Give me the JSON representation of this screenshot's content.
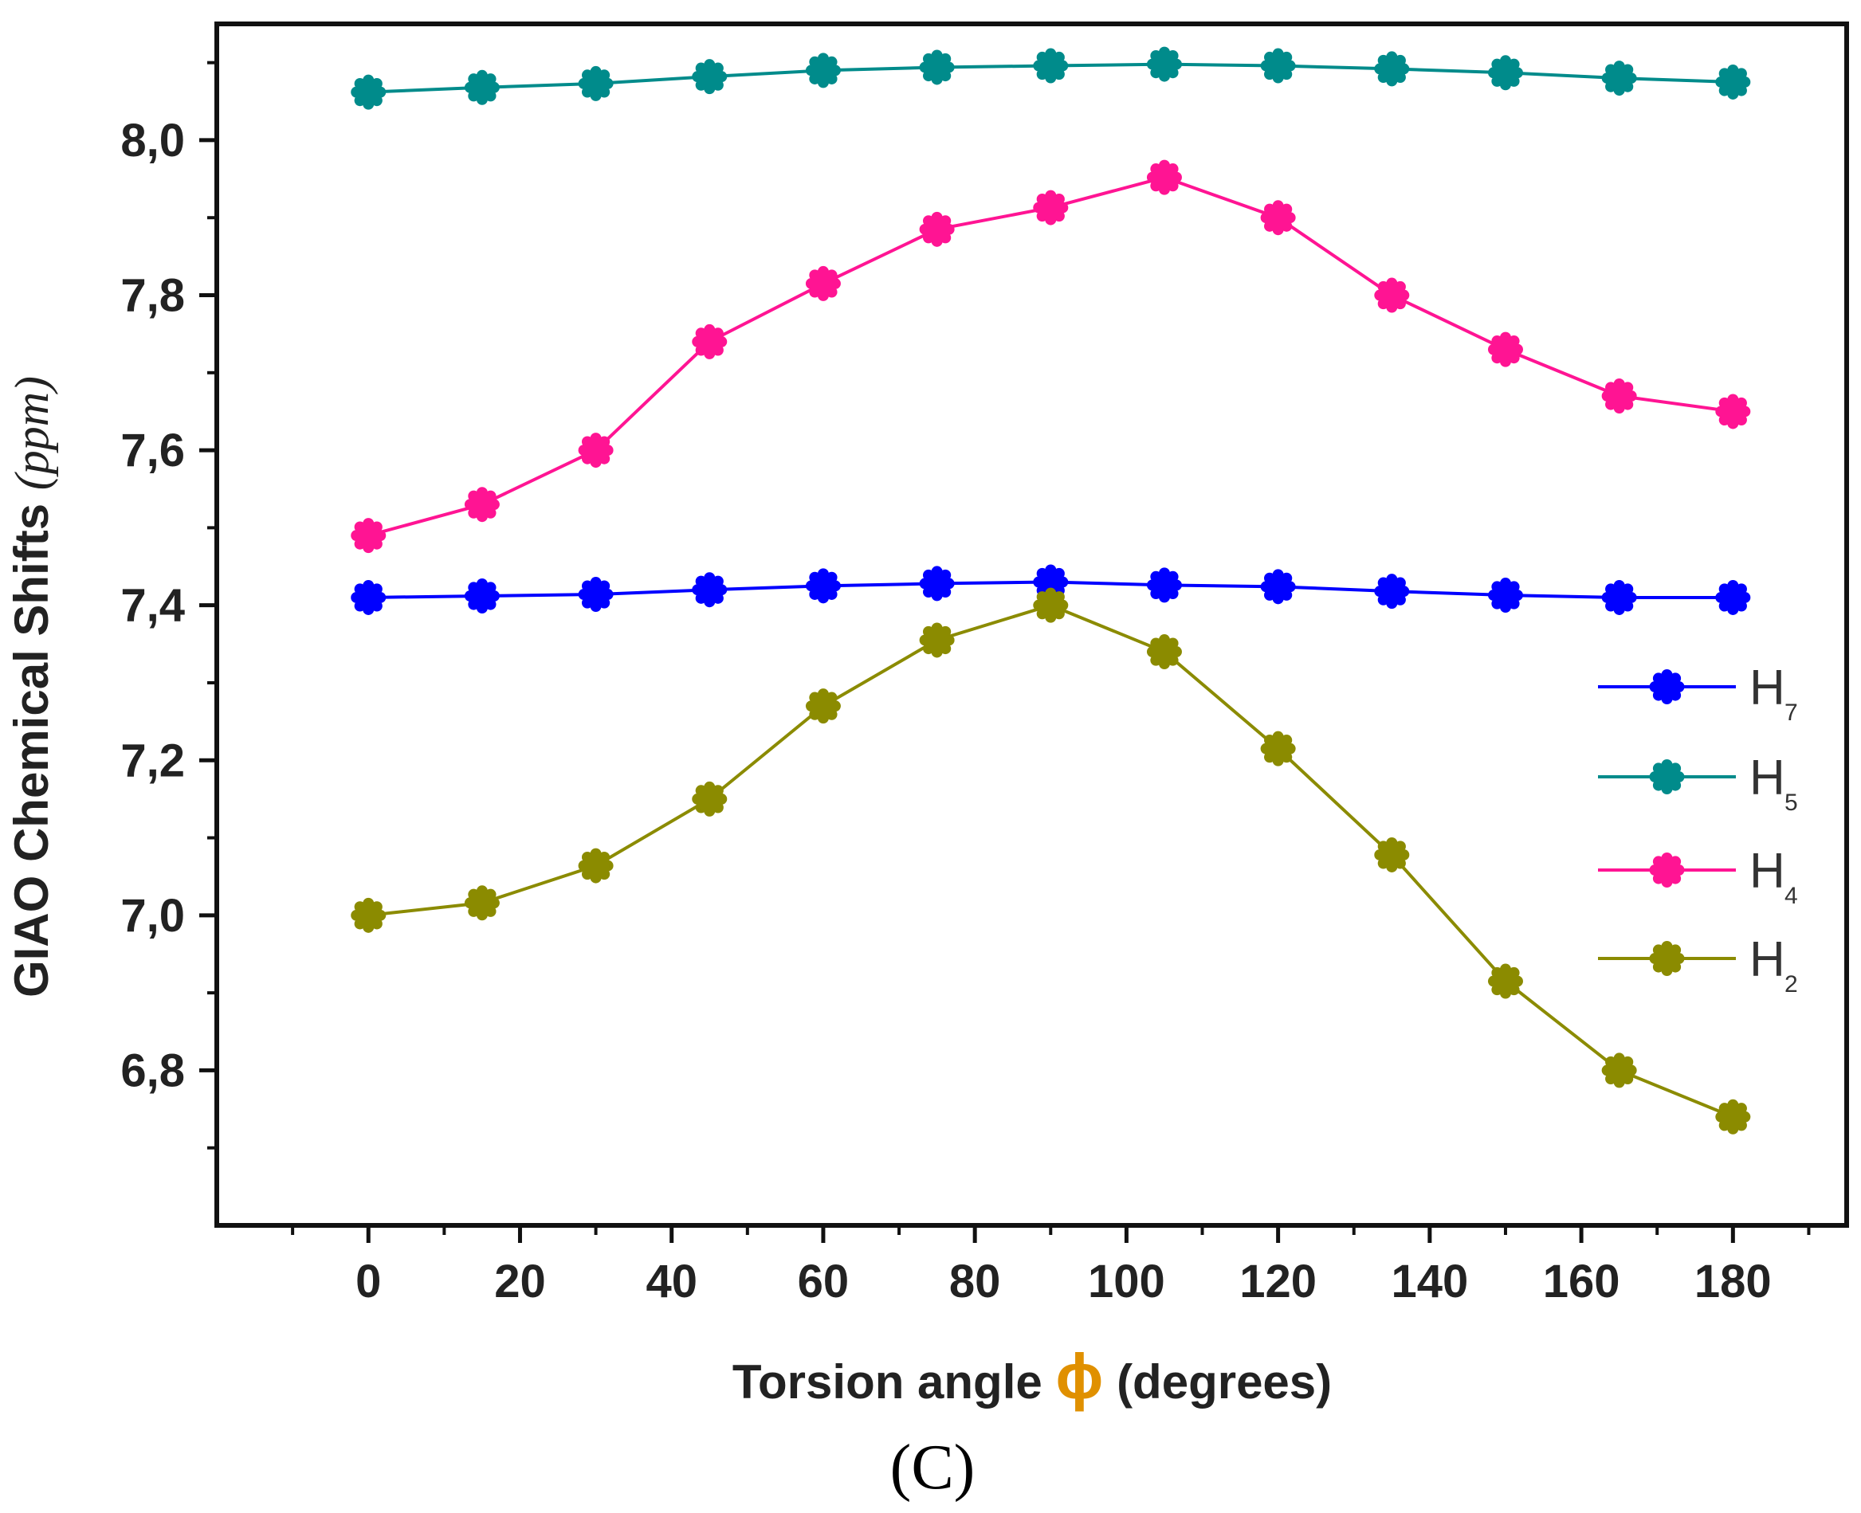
{
  "chart_data": {
    "type": "line",
    "title": "",
    "panel_label": "(C)",
    "xlabel": "Torsion angle",
    "xlabel_symbol": "ϕ",
    "xlabel_units": "(degrees)",
    "ylabel": "GIAO Chemical Shifts",
    "ylabel_units": "(ppm)",
    "xlim": [
      -20,
      195
    ],
    "ylim": [
      6.6,
      8.15
    ],
    "xticks": [
      0,
      20,
      40,
      60,
      80,
      100,
      120,
      140,
      160,
      180
    ],
    "xtick_labels": [
      "0",
      "20",
      "40",
      "60",
      "80",
      "100",
      "120",
      "140",
      "160",
      "180"
    ],
    "yticks": [
      6.8,
      7.0,
      7.2,
      7.4,
      7.6,
      7.8,
      8.0
    ],
    "ytick_labels": [
      "6,8",
      "7,0",
      "7,2",
      "7,4",
      "7,6",
      "7,8",
      "8,0"
    ],
    "grid": false,
    "legend_position": "right",
    "x": [
      0,
      15,
      30,
      45,
      60,
      75,
      90,
      105,
      120,
      135,
      150,
      165,
      180
    ],
    "series": [
      {
        "name": "H",
        "subscript": "7",
        "color": "#0000ff",
        "values": [
          7.41,
          7.412,
          7.414,
          7.42,
          7.425,
          7.428,
          7.43,
          7.426,
          7.424,
          7.418,
          7.413,
          7.41,
          7.41
        ]
      },
      {
        "name": "H",
        "subscript": "5",
        "color": "#008b8b",
        "values": [
          8.062,
          8.068,
          8.073,
          8.082,
          8.09,
          8.094,
          8.096,
          8.098,
          8.096,
          8.092,
          8.087,
          8.08,
          8.075
        ]
      },
      {
        "name": "H",
        "subscript": "4",
        "color": "#ff1493",
        "values": [
          7.49,
          7.53,
          7.6,
          7.74,
          7.815,
          7.885,
          7.913,
          7.952,
          7.9,
          7.8,
          7.73,
          7.67,
          7.65
        ]
      },
      {
        "name": "H",
        "subscript": "2",
        "color": "#8b8b00",
        "values": [
          7.0,
          7.016,
          7.064,
          7.15,
          7.27,
          7.355,
          7.4,
          7.34,
          7.215,
          7.078,
          6.915,
          6.8,
          6.74
        ]
      }
    ]
  }
}
